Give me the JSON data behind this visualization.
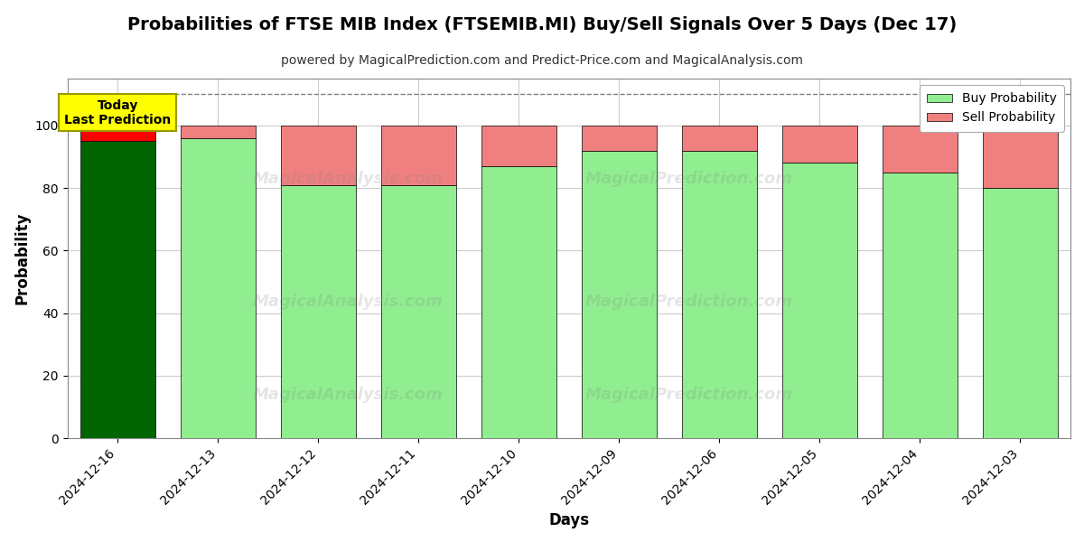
{
  "title": "Probabilities of FTSE MIB Index (FTSEMIB.MI) Buy/Sell Signals Over 5 Days (Dec 17)",
  "subtitle": "powered by MagicalPrediction.com and Predict-Price.com and MagicalAnalysis.com",
  "xlabel": "Days",
  "ylabel": "Probability",
  "dates": [
    "2024-12-16",
    "2024-12-13",
    "2024-12-12",
    "2024-12-11",
    "2024-12-10",
    "2024-12-09",
    "2024-12-06",
    "2024-12-05",
    "2024-12-04",
    "2024-12-03"
  ],
  "buy_probs": [
    95,
    96,
    81,
    81,
    87,
    92,
    92,
    88,
    85,
    80
  ],
  "sell_probs": [
    5,
    4,
    19,
    19,
    13,
    8,
    8,
    12,
    15,
    20
  ],
  "buy_color_today": "#006400",
  "buy_color_rest": "#90EE90",
  "sell_color_today": "#FF0000",
  "sell_color_rest": "#F08080",
  "bar_edge_color": "#000000",
  "bar_width": 0.75,
  "ylim": [
    0,
    115
  ],
  "yticks": [
    0,
    20,
    40,
    60,
    80,
    100
  ],
  "dashed_line_y": 110,
  "today_annotation": "Today\nLast Prediction",
  "today_ann_bg": "#FFFF00",
  "today_ann_border": "#999900",
  "legend_buy_label": "Buy Probability",
  "legend_sell_label": "Sell Probability",
  "watermark1": "MagicalAnalysis.com",
  "watermark2": "MagicalPrediction.com",
  "bg_color": "#ffffff",
  "grid_color": "#cccccc",
  "title_fontsize": 14,
  "subtitle_fontsize": 10
}
